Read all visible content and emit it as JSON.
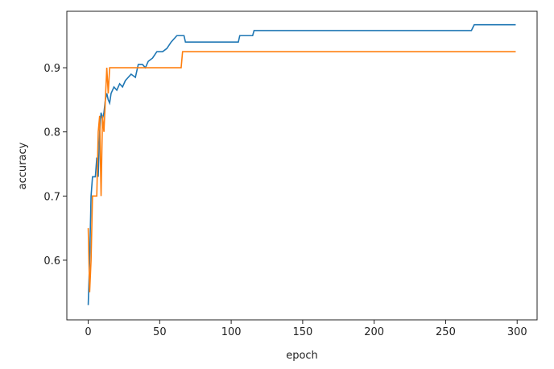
{
  "chart_data": {
    "type": "line",
    "xlabel": "epoch",
    "ylabel": "accuracy",
    "x": [
      0,
      1,
      2,
      3,
      5,
      6,
      7,
      8,
      9,
      10,
      11,
      12,
      13,
      14,
      15,
      16,
      18,
      20,
      22,
      24,
      26,
      28,
      30,
      33,
      35,
      38,
      40,
      42,
      45,
      48,
      52,
      55,
      58,
      62,
      65,
      66,
      67,
      68,
      105,
      106,
      115,
      116,
      268,
      270,
      299
    ],
    "series": [
      {
        "color": "#1f77b4",
        "values": [
          0.53,
          0.6,
          0.7,
          0.73,
          0.73,
          0.76,
          0.73,
          0.8,
          0.83,
          0.82,
          0.83,
          0.85,
          0.86,
          0.85,
          0.845,
          0.86,
          0.87,
          0.865,
          0.875,
          0.87,
          0.88,
          0.885,
          0.89,
          0.885,
          0.905,
          0.905,
          0.9,
          0.91,
          0.915,
          0.925,
          0.925,
          0.93,
          0.94,
          0.95,
          0.95,
          0.95,
          0.95,
          0.94,
          0.94,
          0.95,
          0.95,
          0.958,
          0.958,
          0.967,
          0.967
        ]
      },
      {
        "color": "#ff7f0e",
        "values": [
          0.65,
          0.55,
          0.6,
          0.7,
          0.7,
          0.7,
          0.8,
          0.825,
          0.7,
          0.825,
          0.8,
          0.85,
          0.9,
          0.86,
          0.9,
          0.9,
          0.9,
          0.9,
          0.9,
          0.9,
          0.9,
          0.9,
          0.9,
          0.9,
          0.9,
          0.9,
          0.9,
          0.9,
          0.9,
          0.9,
          0.9,
          0.9,
          0.9,
          0.9,
          0.9,
          0.925,
          0.925,
          0.925,
          0.925,
          0.925,
          0.925,
          0.925,
          0.925,
          0.925,
          0.925
        ]
      }
    ],
    "xlim": [
      -14.95,
      313.95
    ],
    "xticks": [
      0,
      50,
      100,
      150,
      200,
      250,
      300
    ],
    "ylim": [
      0.507,
      0.988
    ],
    "yticks": [
      0.6,
      0.7,
      0.8,
      0.9
    ]
  }
}
